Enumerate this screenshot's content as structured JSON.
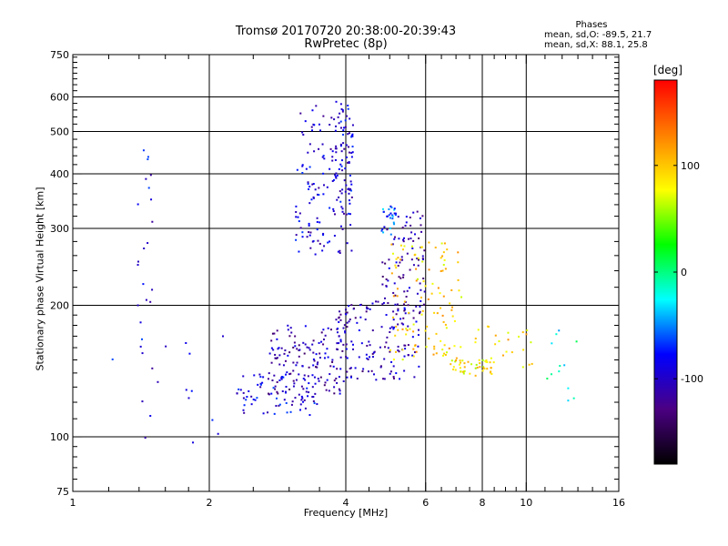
{
  "header": {
    "title": "Tromsø 20170720 20:38:00-20:39:43",
    "subtitle": "RwPretec (8p)"
  },
  "phase_stats": {
    "heading": "Phases",
    "o_mode": "mean, sd,O: -89.5, 21.7",
    "x_mode": "mean, sd,X:  88.1, 25.8"
  },
  "colorbar": {
    "unit": "[deg]",
    "ticks": [
      "100",
      "0",
      "-100"
    ],
    "tick_values": [
      100,
      0,
      -100
    ],
    "range": [
      -180,
      180
    ],
    "colors": [
      "#000000",
      "#4b0082",
      "#0000ff",
      "#00ffff",
      "#00ff00",
      "#ffff00",
      "#ff8000",
      "#ff0000"
    ]
  },
  "chart_data": {
    "type": "scatter",
    "xlabel": "Frequency [MHz]",
    "ylabel": "Stationary phase Virtual Height [km]",
    "x_scale": "log",
    "y_scale": "log",
    "xlim": [
      1,
      16
    ],
    "ylim": [
      75,
      750
    ],
    "x_ticks": [
      1,
      2,
      4,
      6,
      8,
      10,
      16
    ],
    "x_tick_labels": [
      "1",
      "2",
      "4",
      "6",
      "8",
      "10",
      "16"
    ],
    "x_minor_ticks": [
      1.2,
      1.4,
      1.6,
      1.8,
      2.5,
      3,
      3.5,
      4.5,
      5,
      5.5,
      6.5,
      7,
      7.5,
      8.5,
      9,
      9.5,
      11,
      12,
      13,
      14,
      15
    ],
    "x_gridlines": [
      2,
      4,
      6,
      8,
      10
    ],
    "y_ticks": [
      75,
      100,
      200,
      300,
      400,
      500,
      600,
      750
    ],
    "y_tick_labels": [
      "75",
      "100",
      "200",
      "300",
      "400",
      "500",
      "600",
      "750"
    ],
    "y_minor_ticks": [
      80,
      85,
      90,
      95,
      110,
      120,
      130,
      140,
      150,
      160,
      170,
      180,
      190,
      220,
      240,
      260,
      280,
      320,
      340,
      360,
      380,
      420,
      440,
      460,
      480,
      520,
      540,
      560,
      580,
      620,
      640,
      660,
      680,
      700,
      720,
      740
    ],
    "y_gridlines": [
      100,
      200,
      300,
      400,
      500,
      600
    ],
    "grid": true,
    "color_variable": "phase [deg]",
    "clusters": [
      {
        "name": "O-mode F-layer trace",
        "f_range": [
          3.1,
          4.15
        ],
        "h_range": [
          260,
          580
        ],
        "phase": -95,
        "n": 150
      },
      {
        "name": "O-mode upper branch",
        "f_range": [
          3.8,
          4.15
        ],
        "h_range": [
          320,
          600
        ],
        "phase": -90,
        "n": 40
      },
      {
        "name": "O-mode E/F1 region",
        "f_range": [
          2.7,
          4.0
        ],
        "h_range": [
          125,
          180
        ],
        "phase": -110,
        "n": 140
      },
      {
        "name": "O-mode low heights",
        "f_range": [
          2.3,
          3.5
        ],
        "h_range": [
          112,
          140
        ],
        "phase": -90,
        "n": 80
      },
      {
        "name": "O-mode mid band",
        "f_range": [
          3.8,
          5.8
        ],
        "h_range": [
          135,
          205
        ],
        "phase": -105,
        "n": 140
      },
      {
        "name": "O-mode F2 trace",
        "f_range": [
          4.8,
          6.0
        ],
        "h_range": [
          190,
          330
        ],
        "phase": -110,
        "n": 90
      },
      {
        "name": "Cyan spread",
        "f_range": [
          4.8,
          5.2
        ],
        "h_range": [
          290,
          340
        ],
        "phase": -60,
        "n": 25
      },
      {
        "name": "X-mode trace",
        "f_range": [
          5.0,
          7.2
        ],
        "h_range": [
          150,
          280
        ],
        "phase": 95,
        "n": 110
      },
      {
        "name": "X-mode low band",
        "f_range": [
          6.8,
          8.4
        ],
        "h_range": [
          138,
          150
        ],
        "phase": 85,
        "n": 45
      },
      {
        "name": "X-mode high freq",
        "f_range": [
          7.5,
          10.5
        ],
        "h_range": [
          140,
          180
        ],
        "phase": 95,
        "n": 25
      },
      {
        "name": "Low freq column",
        "f_range": [
          1.38,
          1.5
        ],
        "h_range": [
          88,
          470
        ],
        "phase": -90,
        "n": 24
      },
      {
        "name": "Low freq scatter",
        "f_range": [
          1.2,
          2.2
        ],
        "h_range": [
          96,
          180
        ],
        "phase": -90,
        "n": 14
      },
      {
        "name": "High freq scatter",
        "f_range": [
          11.0,
          13.5
        ],
        "h_range": [
          120,
          180
        ],
        "phase": -20,
        "n": 12
      }
    ]
  }
}
